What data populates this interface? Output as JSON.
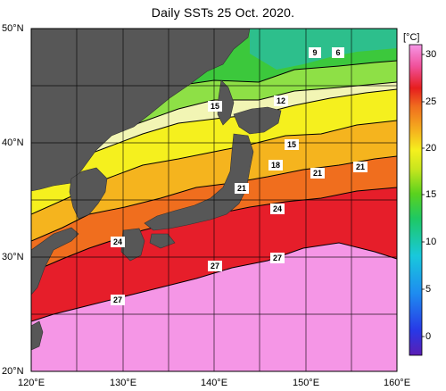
{
  "title": "Daily SSTs 25 Oct. 2020.",
  "map": {
    "lon_range": [
      120,
      160
    ],
    "lat_range": [
      20,
      50
    ],
    "x_tick_labels": [
      "120°E",
      "130°E",
      "140°E",
      "150°E",
      "160°E"
    ],
    "y_tick_labels": [
      "50°N",
      "40°N",
      "30°N",
      "20°N"
    ],
    "grid": "every 5°",
    "land_color": "#575757",
    "ocean_gradient_note": "warm (magenta/red) south, cool (green/cyan) north"
  },
  "colorbar": {
    "unit": "[°C]",
    "tick_labels": [
      "30",
      "25",
      "20",
      "15",
      "10",
      "5",
      "0"
    ],
    "range": [
      -2,
      31
    ],
    "colors": [
      "#5a1eb4",
      "#2838e6",
      "#1e8cf0",
      "#19c8dc",
      "#1ec864",
      "#5ad21e",
      "#c8e61e",
      "#f5f01e",
      "#f5b41e",
      "#f06e1e",
      "#e61e1e",
      "#f0509a",
      "#f596e6"
    ]
  },
  "contour_labels": [
    {
      "text": "9"
    },
    {
      "text": "6"
    },
    {
      "text": "12"
    },
    {
      "text": "15"
    },
    {
      "text": "15"
    },
    {
      "text": "18"
    },
    {
      "text": "21"
    },
    {
      "text": "21"
    },
    {
      "text": "21"
    },
    {
      "text": "24"
    },
    {
      "text": "24"
    },
    {
      "text": "27"
    },
    {
      "text": "27"
    },
    {
      "text": "27"
    }
  ]
}
